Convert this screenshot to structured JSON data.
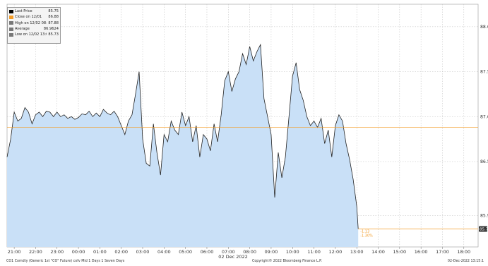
{
  "chart_data": {
    "type": "area",
    "xlabel": "",
    "ylabel": "",
    "date_label": "02 Dec 2022",
    "ylim": [
      85.55,
      88.25
    ],
    "x_ticks": [
      "21:00",
      "22:00",
      "23:00",
      "00:00",
      "01:00",
      "02:00",
      "03:00",
      "04:00",
      "05:00",
      "06:00",
      "07:00",
      "08:00",
      "09:00",
      "10:00",
      "11:00",
      "12:00",
      "13:00",
      "14:00",
      "15:00",
      "16:00",
      "17:00",
      "18:00"
    ],
    "y_ticks": [
      "85.9",
      "86.5",
      "87.0",
      "87.5",
      "88.0"
    ],
    "grid": true,
    "legend_position": "top-left",
    "series": [
      {
        "name": "Last Price",
        "x": [
          "20:40",
          "20:50",
          "21:00",
          "21:10",
          "21:20",
          "21:30",
          "21:40",
          "21:50",
          "22:00",
          "22:10",
          "22:20",
          "22:30",
          "22:40",
          "22:50",
          "23:00",
          "23:10",
          "23:20",
          "23:30",
          "23:40",
          "23:50",
          "00:00",
          "00:10",
          "00:20",
          "00:30",
          "00:40",
          "00:50",
          "01:00",
          "01:10",
          "01:20",
          "01:30",
          "01:40",
          "01:50",
          "02:00",
          "02:10",
          "02:20",
          "02:30",
          "02:40",
          "02:50",
          "03:00",
          "03:10",
          "03:20",
          "03:30",
          "03:40",
          "03:50",
          "04:00",
          "04:10",
          "04:20",
          "04:30",
          "04:40",
          "04:50",
          "05:00",
          "05:10",
          "05:20",
          "05:30",
          "05:40",
          "05:50",
          "06:00",
          "06:10",
          "06:20",
          "06:30",
          "06:40",
          "06:50",
          "07:00",
          "07:10",
          "07:20",
          "07:30",
          "07:40",
          "07:50",
          "08:00",
          "08:10",
          "08:20",
          "08:30",
          "08:40",
          "08:50",
          "09:00",
          "09:10",
          "09:20",
          "09:30",
          "09:40",
          "09:50",
          "10:00",
          "10:10",
          "10:20",
          "10:30",
          "10:40",
          "10:50",
          "11:00",
          "11:10",
          "11:20",
          "11:30",
          "11:40",
          "11:50",
          "12:00",
          "12:10",
          "12:20",
          "12:30",
          "12:40",
          "12:50",
          "13:00",
          "13:04"
        ],
        "values": [
          86.55,
          86.75,
          87.05,
          86.95,
          86.98,
          87.1,
          87.05,
          86.92,
          87.02,
          87.05,
          87.0,
          87.06,
          87.05,
          87.0,
          87.05,
          87.0,
          87.02,
          86.98,
          87.0,
          86.97,
          86.99,
          87.03,
          87.02,
          87.06,
          87.0,
          87.04,
          87.0,
          87.08,
          87.04,
          87.02,
          87.06,
          87.0,
          86.9,
          86.8,
          86.95,
          87.02,
          87.25,
          87.5,
          86.75,
          86.48,
          86.45,
          86.92,
          86.6,
          86.35,
          86.8,
          86.72,
          86.95,
          86.85,
          86.8,
          87.05,
          86.9,
          87.0,
          86.72,
          86.9,
          86.55,
          86.8,
          86.75,
          86.62,
          86.92,
          86.72,
          87.02,
          87.4,
          87.5,
          87.28,
          87.42,
          87.5,
          87.7,
          87.58,
          87.78,
          87.62,
          87.72,
          87.8,
          87.2,
          87.0,
          86.8,
          86.1,
          86.6,
          86.32,
          86.55,
          87.0,
          87.45,
          87.6,
          87.3,
          87.18,
          87.0,
          86.9,
          86.95,
          86.88,
          86.98,
          86.7,
          86.85,
          86.55,
          86.9,
          87.02,
          86.95,
          86.7,
          86.52,
          86.3,
          86.0,
          85.75
        ]
      }
    ],
    "legend": [
      {
        "label": "Last Price",
        "value": "85.75",
        "color": "#000000"
      },
      {
        "label": "Close on 12/01",
        "value": "86.88",
        "color": "#f39c27"
      },
      {
        "label": "High on 12/02 08:20",
        "value": "87.88",
        "color": "#777777"
      },
      {
        "label": "Average",
        "value": "86.9624",
        "color": "#777777"
      },
      {
        "label": "Low on 12/02 13:04",
        "value": "85.73",
        "color": "#777777"
      }
    ],
    "reference_lines": [
      {
        "name": "Close on 12/01",
        "value": 86.88,
        "color": "#f39c27"
      },
      {
        "name": "Last Price",
        "value": 85.75,
        "color": "#f39c27"
      }
    ],
    "change_annotation": {
      "abs": "-1.13",
      "pct": "-1.30%"
    },
    "last_price_tag": "85.75",
    "colors": {
      "fill": "#c9e0f7",
      "line": "#222222",
      "reference": "#f39c27",
      "grid": "#bdbdbd"
    }
  },
  "footer": {
    "left": "CO1 Comdty (Generic 1st \"CO\" Future) cofv Mid 1 Days 1 Seven Days",
    "center": "Copyright© 2022 Bloomberg Finance L.P.",
    "right": "02-Dec-2022 13:15:1"
  }
}
